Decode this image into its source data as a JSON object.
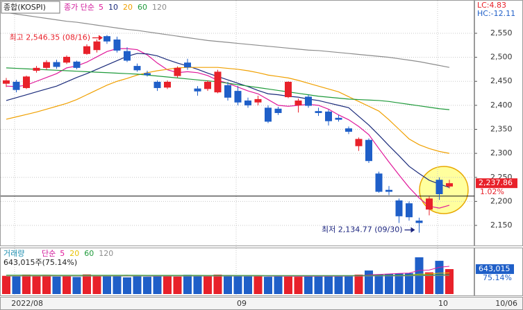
{
  "chart_data": [
    {
      "type": "candlestick",
      "title": "종합(KOSPI)",
      "legend_prefix": "종가 단순",
      "categories": [
        "2022/08",
        null,
        null,
        null,
        null,
        null,
        null,
        null,
        null,
        null,
        null,
        null,
        null,
        null,
        null,
        null,
        null,
        null,
        null,
        null,
        null,
        null,
        "09",
        null,
        null,
        null,
        null,
        null,
        null,
        null,
        null,
        null,
        null,
        null,
        null,
        null,
        null,
        null,
        null,
        null,
        null,
        null,
        "10",
        null,
        null
      ],
      "last_date": "10/06",
      "up_color": "#e8212a",
      "down_color": "#1f5fc8",
      "open": [
        2445,
        2449,
        2436,
        2472,
        2478,
        2490,
        2489,
        2491,
        2507,
        2515,
        2544,
        2537,
        2513,
        2482,
        2467,
        2449,
        2437,
        2461,
        2489,
        2435,
        2434,
        2427,
        2442,
        2430,
        2410,
        2406,
        2395,
        2393,
        2417,
        2400,
        2418,
        2388,
        2387,
        2374,
        2352,
        2315,
        2328,
        2258,
        2224,
        2202,
        2196,
        2160,
        2183,
        2245,
        2231
      ],
      "high": [
        2457,
        2453,
        2462,
        2482,
        2494,
        2495,
        2504,
        2493,
        2527,
        2537,
        2546.35,
        2543,
        2521,
        2487,
        2472,
        2452,
        2452,
        2481,
        2497,
        2440,
        2452,
        2474,
        2449,
        2440,
        2416,
        2420,
        2400,
        2397,
        2450,
        2414,
        2422,
        2395,
        2391,
        2380,
        2356,
        2333,
        2331,
        2262,
        2232,
        2206,
        2200,
        2166,
        2210,
        2250,
        2245
      ],
      "low": [
        2438,
        2427,
        2434,
        2468,
        2474,
        2476,
        2486,
        2475,
        2505,
        2510,
        2528,
        2510,
        2490,
        2470,
        2460,
        2430,
        2434,
        2458,
        2474,
        2420,
        2430,
        2425,
        2410,
        2400,
        2395,
        2400,
        2363,
        2380,
        2415,
        2385,
        2395,
        2378,
        2358,
        2366,
        2340,
        2305,
        2280,
        2218,
        2213,
        2155,
        2160,
        2134.77,
        2171,
        2203,
        2227
      ],
      "close": [
        2452,
        2432,
        2460,
        2478,
        2490,
        2480,
        2501,
        2478,
        2523,
        2533,
        2533,
        2514,
        2493,
        2473,
        2463,
        2436,
        2449,
        2478,
        2479,
        2429,
        2449,
        2470,
        2416,
        2406,
        2400,
        2413,
        2366,
        2384,
        2449,
        2410,
        2399,
        2384,
        2367,
        2370,
        2345,
        2330,
        2284,
        2220,
        2220,
        2169,
        2167,
        2155,
        2206,
        2215,
        2237.86
      ],
      "series": [
        {
          "name": "5",
          "color": "#e0189a",
          "values": [
            2440,
            2439,
            2442,
            2450,
            2458,
            2466,
            2478,
            2482,
            2490,
            2501,
            2512,
            2518,
            2518,
            2516,
            2505,
            2488,
            2474,
            2468,
            2470,
            2468,
            2462,
            2452,
            2446,
            2438,
            2430,
            2424,
            2412,
            2400,
            2398,
            2400,
            2402,
            2400,
            2392,
            2380,
            2370,
            2356,
            2339,
            2310,
            2282,
            2255,
            2229,
            2207,
            2190,
            2186,
            2192
          ]
        },
        {
          "name": "10",
          "color": "#1a2a7a",
          "values": [
            2410,
            2416,
            2422,
            2428,
            2434,
            2440,
            2449,
            2458,
            2466,
            2475,
            2484,
            2493,
            2502,
            2508,
            2507,
            2503,
            2495,
            2488,
            2482,
            2475,
            2467,
            2460,
            2453,
            2446,
            2439,
            2431,
            2424,
            2422,
            2419,
            2417,
            2413,
            2410,
            2405,
            2400,
            2395,
            2377,
            2359,
            2338,
            2316,
            2295,
            2273,
            2258,
            2244,
            2236,
            2229
          ]
        },
        {
          "name": "20",
          "color": "#f0a000",
          "values": [
            2371,
            2376,
            2381,
            2386,
            2392,
            2398,
            2404,
            2412,
            2422,
            2432,
            2442,
            2450,
            2456,
            2463,
            2468,
            2472,
            2475,
            2478,
            2479,
            2479,
            2479,
            2479,
            2477,
            2475,
            2472,
            2468,
            2463,
            2460,
            2457,
            2452,
            2446,
            2440,
            2434,
            2428,
            2418,
            2408,
            2398,
            2388,
            2370,
            2350,
            2330,
            2318,
            2310,
            2304,
            2300
          ]
        },
        {
          "name": "60",
          "color": "#1e9a3a",
          "values": [
            2478,
            2477,
            2476,
            2475,
            2474,
            2473,
            2472,
            2471,
            2470,
            2469,
            2468,
            2467,
            2466,
            2465,
            2463,
            2461,
            2459,
            2457,
            2455,
            2453,
            2451,
            2449,
            2446,
            2443,
            2440,
            2437,
            2434,
            2431,
            2428,
            2425,
            2422,
            2419,
            2417,
            2415,
            2413,
            2412,
            2411,
            2410,
            2408,
            2405,
            2402,
            2399,
            2396,
            2393,
            2391
          ]
        },
        {
          "name": "120",
          "color": "#8c8c8c",
          "values": [
            2593,
            2590,
            2587,
            2584,
            2581,
            2578,
            2575,
            2573,
            2570,
            2567,
            2564,
            2561,
            2558,
            2556,
            2553,
            2550,
            2547,
            2544,
            2541,
            2538,
            2535,
            2533,
            2531,
            2529,
            2527,
            2525,
            2523,
            2521,
            2519,
            2517,
            2515,
            2514,
            2512,
            2510,
            2508,
            2506,
            2504,
            2502,
            2500,
            2497,
            2494,
            2491,
            2487,
            2483,
            2479
          ]
        }
      ],
      "ylim": [
        2106.7,
        2619.3
      ],
      "yticks": [
        {
          "value": 2150,
          "label": "2,150"
        },
        {
          "value": 2200,
          "label": "2,200"
        },
        {
          "value": 2250,
          "label": "2,250"
        },
        {
          "value": 2300,
          "label": "2,300"
        },
        {
          "value": 2350,
          "label": "2,350"
        },
        {
          "value": 2400,
          "label": "2,400"
        },
        {
          "value": 2450,
          "label": "2,450"
        },
        {
          "value": 2500,
          "label": "2,500"
        },
        {
          "value": 2550,
          "label": "2,550"
        }
      ],
      "grid": true,
      "hline": 2211,
      "current_price": {
        "value": 2237.86,
        "label": "2,237.86"
      },
      "change_label": "1.02%",
      "lc_label": "LC:4.83",
      "hc_label": "HC:-12.11",
      "annotations": [
        {
          "text": "최고 2,546.35 (08/16)",
          "value": 2546.35,
          "color": "#e8212a"
        },
        {
          "text": "최저 2,134.77 (09/30)",
          "value": 2134.77,
          "color": "#1a237e"
        }
      ]
    },
    {
      "type": "bar",
      "title": "거래량",
      "legend_prefix": "단순",
      "info": "643,015주(75.14%)",
      "values": [
        470000,
        455000,
        500000,
        480000,
        495000,
        450000,
        470000,
        440000,
        505000,
        490000,
        485000,
        470000,
        430000,
        480000,
        445000,
        470000,
        465000,
        450000,
        495000,
        470000,
        470000,
        500000,
        470000,
        460000,
        455000,
        470000,
        445000,
        470000,
        450000,
        445000,
        470000,
        455000,
        470000,
        455000,
        460000,
        500000,
        607000,
        510000,
        520000,
        530000,
        540000,
        947000,
        560000,
        857000,
        643015
      ],
      "series": [
        {
          "name": "5",
          "color": "#e0189a",
          "values": [
            470000,
            468000,
            470000,
            472000,
            480000,
            476000,
            469000,
            467000,
            472000,
            470000,
            478000,
            478000,
            484000,
            471000,
            462000,
            460000,
            468000,
            462000,
            465000,
            470000,
            470000,
            471000,
            481000,
            474000,
            471000,
            471000,
            460000,
            460000,
            458000,
            456000,
            456000,
            458000,
            458000,
            459000,
            462000,
            468000,
            497000,
            506000,
            519000,
            533000,
            541000,
            609000,
            619000,
            691000,
            715000
          ]
        },
        {
          "name": "20",
          "color": "#e8c000",
          "values": [
            470000,
            470000,
            470000,
            470000,
            470000,
            470000,
            470000,
            470000,
            470000,
            470000,
            471000,
            471000,
            471000,
            471000,
            471000,
            471000,
            471000,
            470000,
            470000,
            470000,
            470000,
            470000,
            470000,
            470000,
            470000,
            469000,
            469000,
            468000,
            468000,
            467000,
            467000,
            467000,
            467000,
            466000,
            466000,
            467000,
            474000,
            477000,
            480000,
            484000,
            488000,
            513000,
            518000,
            538000,
            545000
          ]
        },
        {
          "name": "60",
          "color": "#1e9a3a",
          "values": [
            488000,
            488000,
            487000,
            487000,
            487000,
            486000,
            486000,
            486000,
            485000,
            485000,
            485000,
            484000,
            484000,
            484000,
            483000,
            483000,
            483000,
            482000,
            482000,
            482000,
            481000,
            481000,
            481000,
            480000,
            480000,
            480000,
            479000,
            479000,
            479000,
            478000,
            478000,
            478000,
            478000,
            478000,
            478000,
            479000,
            481000,
            482000,
            483000,
            484000,
            485000,
            492000,
            493000,
            499000,
            501000
          ]
        },
        {
          "name": "120",
          "color": "#8c8c8c",
          "values": [
            462000,
            462000,
            462000,
            462000,
            462000,
            462000,
            462000,
            462000,
            462000,
            462000,
            462000,
            462000,
            462000,
            462000,
            462000,
            462000,
            462000,
            462000,
            462000,
            462000,
            462000,
            462000,
            462000,
            462000,
            462000,
            462000,
            462000,
            462000,
            462000,
            462000,
            462000,
            462000,
            462000,
            463000,
            463000,
            464000,
            465000,
            466000,
            467000,
            468000,
            469000,
            473000,
            474000,
            478000,
            480000
          ]
        }
      ],
      "ylim": [
        0,
        1180000
      ],
      "current": {
        "value": 643015,
        "label": "643,015"
      },
      "current_pct": "75.14%"
    }
  ]
}
